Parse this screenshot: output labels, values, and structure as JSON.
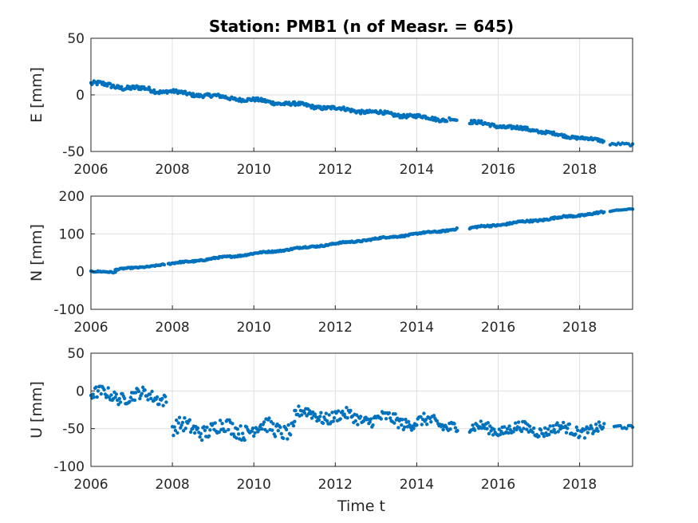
{
  "chart_data": {
    "title": "Station: PMB1 (n of Measr. = 645)",
    "xlabel": "Time t",
    "color": "#0072BD",
    "grid": true,
    "panels": [
      {
        "type": "scatter",
        "ylabel": "E [mm]",
        "xlim": [
          2006,
          2019.3
        ],
        "ylim": [
          -50,
          50
        ],
        "xticks": [
          2006,
          2008,
          2010,
          2012,
          2014,
          2016,
          2018
        ],
        "yticks": [
          -50,
          0,
          50
        ],
        "segments": [
          {
            "from": 2006.0,
            "to": 2007.8,
            "step": 0.025,
            "y_start": 10,
            "y_end": 3,
            "wobble": 2.0,
            "period": 1.0
          },
          {
            "from": 2007.85,
            "to": 2014.75,
            "step": 0.022,
            "y_start": 3,
            "y_end": -22,
            "wobble": 1.5,
            "period": 1.0
          },
          {
            "from": 2014.8,
            "to": 2015.0,
            "step": 0.03,
            "y_start": -21,
            "y_end": -23,
            "wobble": 1.0,
            "period": 1.0
          },
          {
            "from": 2015.3,
            "to": 2017.0,
            "step": 0.022,
            "y_start": -24,
            "y_end": -32,
            "wobble": 1.5,
            "period": 1.0
          },
          {
            "from": 2017.05,
            "to": 2018.6,
            "step": 0.022,
            "y_start": -33,
            "y_end": -41,
            "wobble": 1.2,
            "period": 1.0
          },
          {
            "from": 2018.75,
            "to": 2019.3,
            "step": 0.05,
            "y_start": -44,
            "y_end": -44,
            "wobble": 1.0,
            "period": 1.0
          }
        ]
      },
      {
        "type": "scatter",
        "ylabel": "N [mm]",
        "xlim": [
          2006,
          2019.3
        ],
        "ylim": [
          -100,
          200
        ],
        "xticks": [
          2006,
          2008,
          2010,
          2012,
          2014,
          2016,
          2018
        ],
        "yticks": [
          -100,
          0,
          100,
          200
        ],
        "segments": [
          {
            "from": 2006.0,
            "to": 2006.6,
            "step": 0.025,
            "y_start": 0,
            "y_end": -2,
            "wobble": 1.5,
            "period": 1.0
          },
          {
            "from": 2006.6,
            "to": 2007.8,
            "step": 0.025,
            "y_start": 5,
            "y_end": 18,
            "wobble": 1.5,
            "period": 1.0
          },
          {
            "from": 2007.9,
            "to": 2015.0,
            "step": 0.022,
            "y_start": 20,
            "y_end": 113,
            "wobble": 2.0,
            "period": 1.0
          },
          {
            "from": 2015.3,
            "to": 2018.6,
            "step": 0.022,
            "y_start": 115,
            "y_end": 157,
            "wobble": 2.5,
            "period": 1.0
          },
          {
            "from": 2018.75,
            "to": 2019.3,
            "step": 0.05,
            "y_start": 160,
            "y_end": 166,
            "wobble": 1.0,
            "period": 1.0
          }
        ]
      },
      {
        "type": "scatter",
        "ylabel": "U [mm]",
        "xlim": [
          2006,
          2019.3
        ],
        "ylim": [
          -100,
          50
        ],
        "xticks": [
          2006,
          2008,
          2010,
          2012,
          2014,
          2016,
          2018
        ],
        "yticks": [
          -100,
          -50,
          0,
          50
        ],
        "segments": [
          {
            "from": 2006.0,
            "to": 2007.85,
            "step": 0.025,
            "y_start": -5,
            "y_end": -8,
            "wobble": 8.0,
            "period": 1.0
          },
          {
            "from": 2008.0,
            "to": 2011.0,
            "step": 0.025,
            "y_start": -50,
            "y_end": -50,
            "wobble": 10.0,
            "period": 1.0
          },
          {
            "from": 2011.0,
            "to": 2015.0,
            "step": 0.025,
            "y_start": -30,
            "y_end": -45,
            "wobble": 8.0,
            "period": 1.0
          },
          {
            "from": 2015.3,
            "to": 2018.6,
            "step": 0.025,
            "y_start": -50,
            "y_end": -52,
            "wobble": 7.0,
            "period": 1.0
          },
          {
            "from": 2018.85,
            "to": 2019.3,
            "step": 0.05,
            "y_start": -48,
            "y_end": -50,
            "wobble": 3.0,
            "period": 1.0
          }
        ]
      }
    ]
  }
}
